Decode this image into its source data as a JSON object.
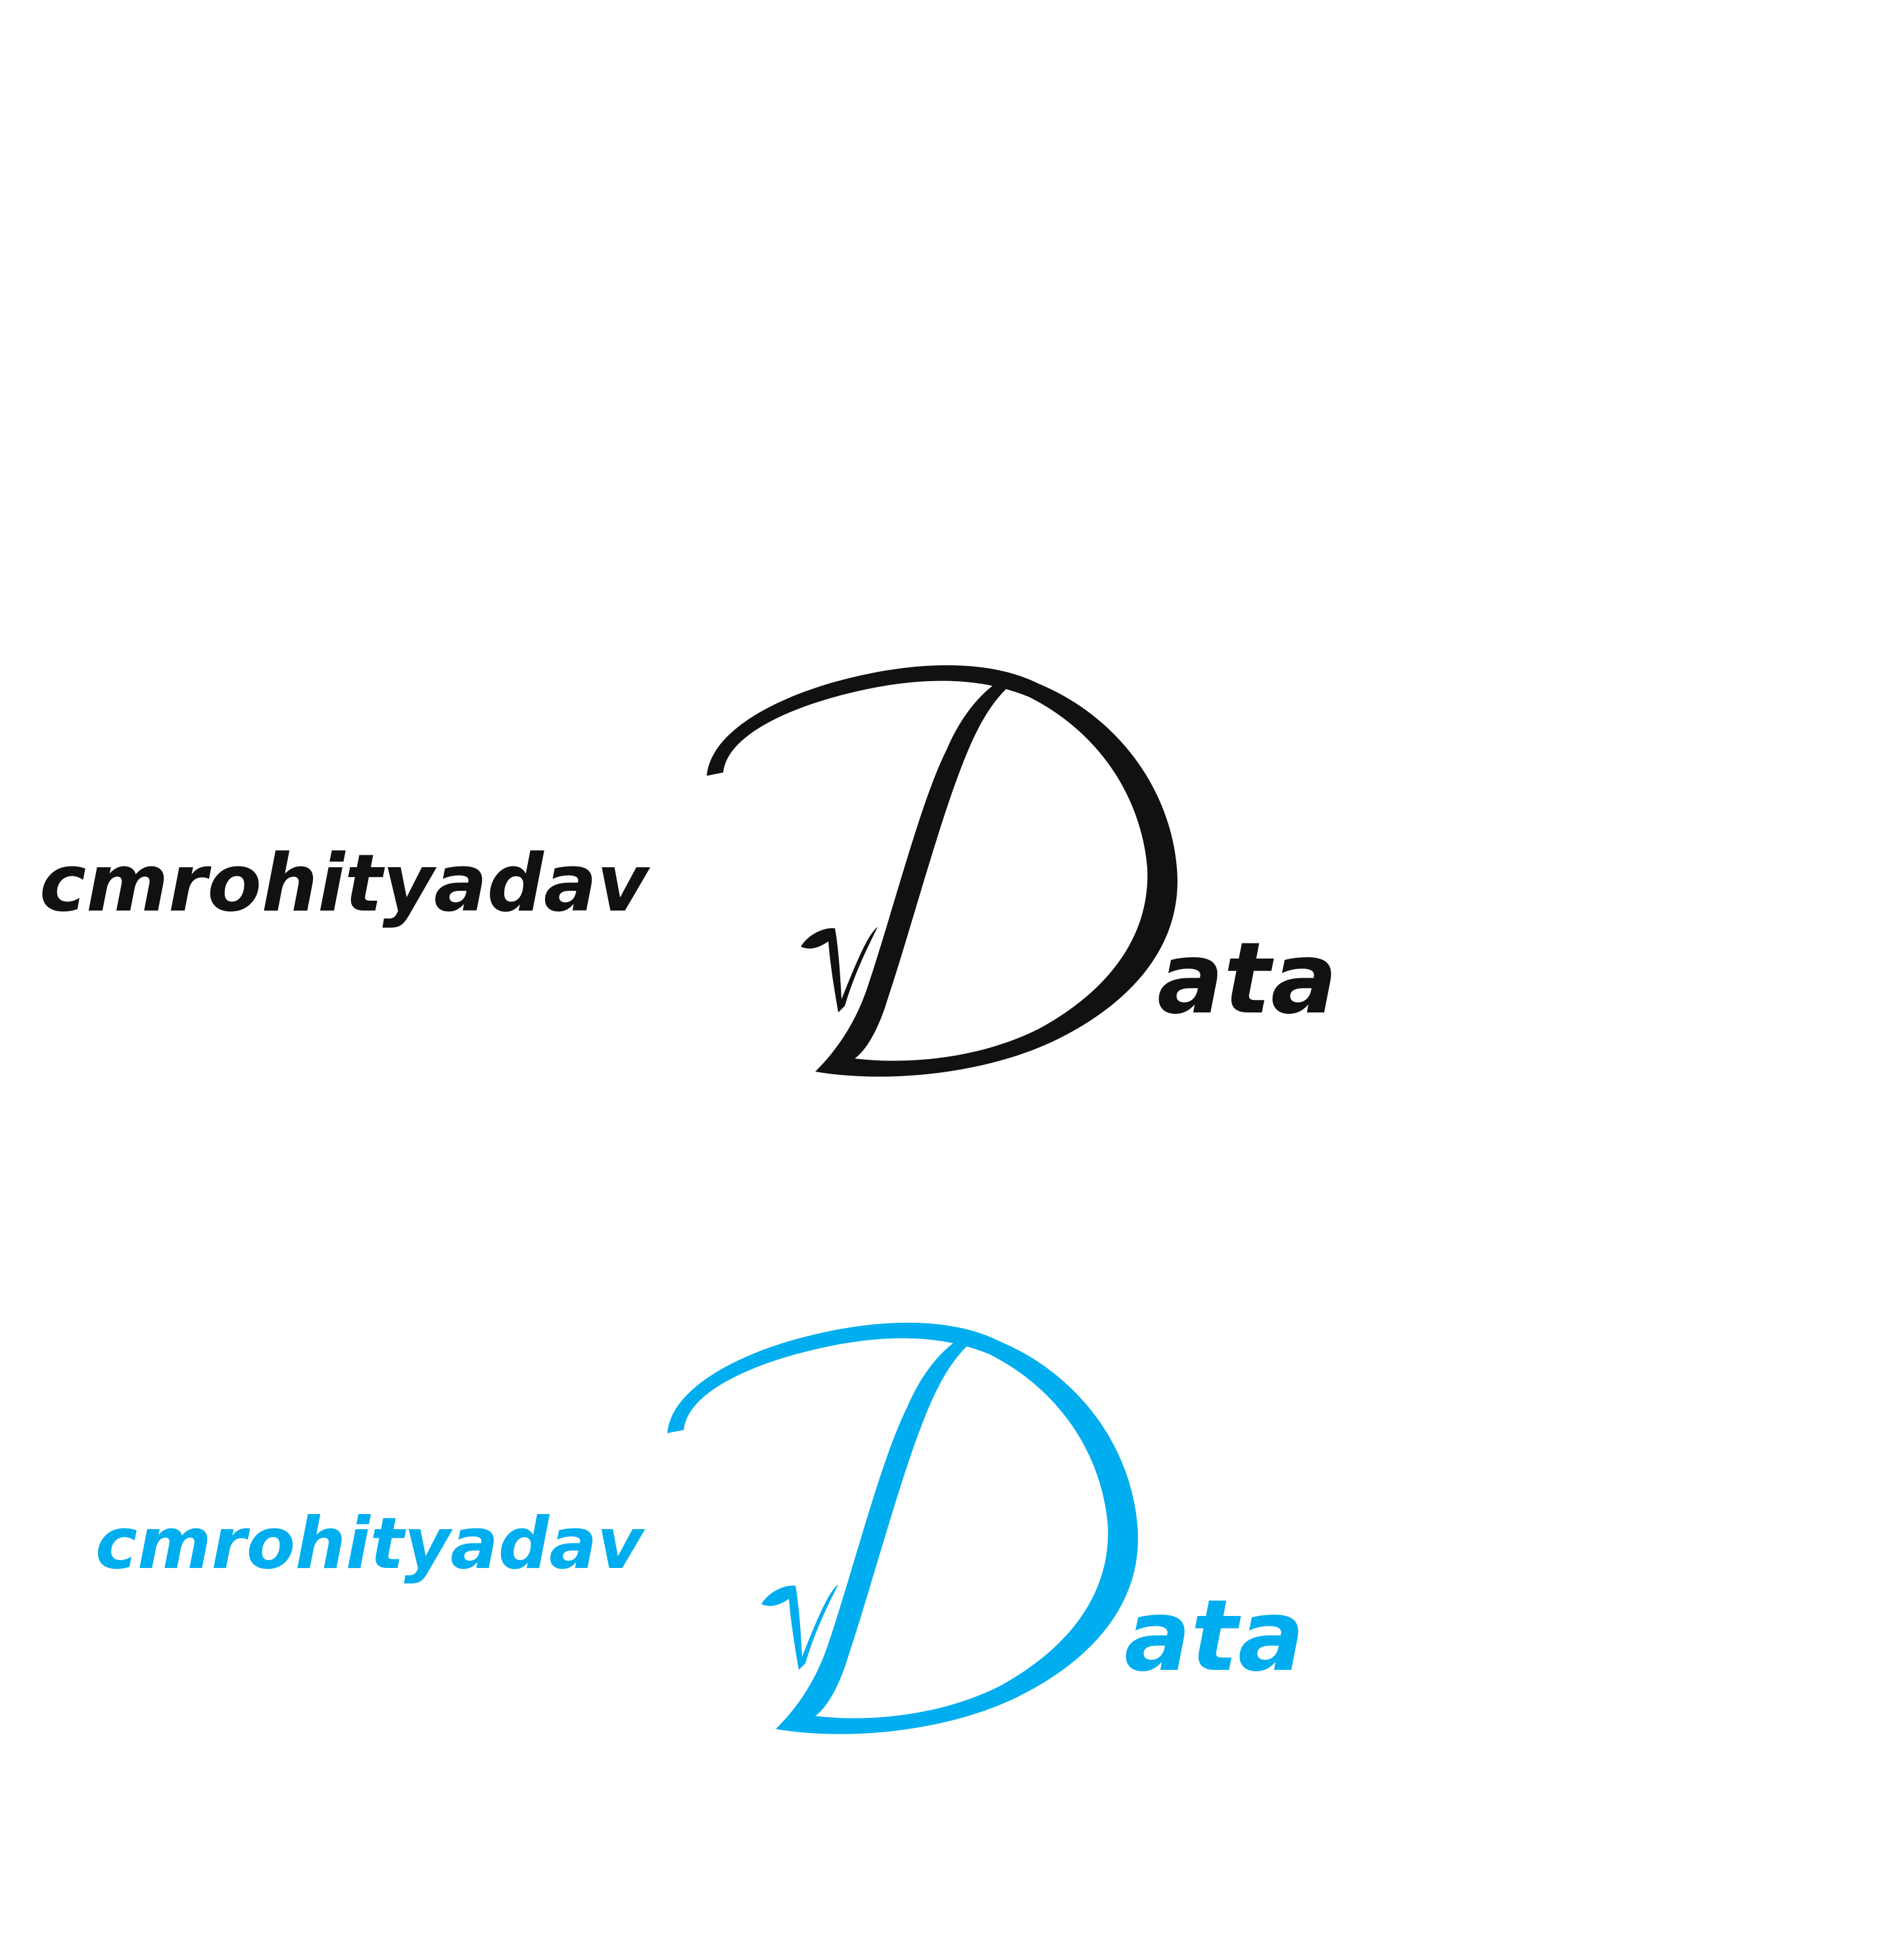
{
  "logos": [
    {
      "variant": "black",
      "color": "#111111",
      "prefix": "cmrohityadav",
      "d_letter": "D",
      "suffix": "ata"
    },
    {
      "variant": "blue",
      "color": "#00AEEF",
      "prefix": "cmrohityadav",
      "d_letter": "D",
      "suffix": "ata"
    }
  ]
}
